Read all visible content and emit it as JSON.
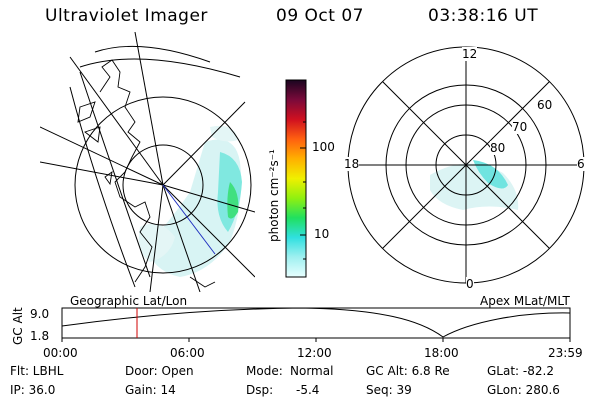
{
  "header": {
    "title": "Ultraviolet Imager",
    "date": "09 Oct 07",
    "time": "03:38:16 UT"
  },
  "left_map": {
    "label": "Geographic Lat/Lon"
  },
  "right_map": {
    "label": "Apex MLat/MLT",
    "mlt_labels": {
      "top": "12",
      "left": "18",
      "right": "6",
      "bottom": "0"
    },
    "lat_labels": [
      "60",
      "70",
      "80"
    ]
  },
  "colorbar": {
    "unit_label": "photon cm⁻²s⁻¹",
    "ticks": [
      "100",
      "10"
    ],
    "colors": [
      "#2a0a30",
      "#7a0a3a",
      "#d01020",
      "#ff6010",
      "#ffb000",
      "#f0f000",
      "#90f010",
      "#20e060",
      "#30e0e0",
      "#a0f0f0",
      "#e8ffff"
    ]
  },
  "altitude_plot": {
    "ylabel": "GC Alt",
    "y_ticks": [
      "9.0",
      "1.8"
    ],
    "x_ticks": [
      "00:00",
      "06:00",
      "12:00",
      "18:00",
      "23:59"
    ],
    "marker_time": "03:38",
    "marker_color": "#d00000"
  },
  "info": {
    "filter": "Flt: LBHL",
    "door": "Door: Open",
    "mode_label": "Mode:",
    "mode_value": "Normal",
    "gc_alt": "GC Alt: 6.8 Re",
    "glat": "GLat: -82.2",
    "ip": "IP: 36.0",
    "gain": "Gain: 14",
    "dsp_label": "Dsp:",
    "dsp_value": "-5.4",
    "seq": "Seq: 39",
    "glon": "GLon: 280.6"
  }
}
